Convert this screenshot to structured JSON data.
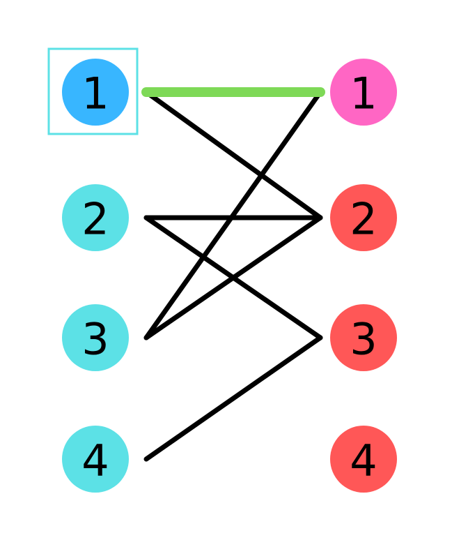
{
  "colors": {
    "background": "#ffffff",
    "left_default": "#5ce1e6",
    "left_active": "#38b6ff",
    "right_active": "#ff66c4",
    "right_default": "#ff5757",
    "edge": "#000000",
    "matched_edge": "#7ed957",
    "selection_box": "#5ce1e6",
    "label": "#000000"
  },
  "left_nodes": [
    {
      "label": "1",
      "state": "active"
    },
    {
      "label": "2",
      "state": "default"
    },
    {
      "label": "3",
      "state": "default"
    },
    {
      "label": "4",
      "state": "default"
    }
  ],
  "right_nodes": [
    {
      "label": "1",
      "state": "active"
    },
    {
      "label": "2",
      "state": "default"
    },
    {
      "label": "3",
      "state": "default"
    },
    {
      "label": "4",
      "state": "default"
    }
  ],
  "edges": [
    {
      "from": "1",
      "to": "1",
      "matched": true
    },
    {
      "from": "1",
      "to": "2",
      "matched": false
    },
    {
      "from": "2",
      "to": "2",
      "matched": false
    },
    {
      "from": "2",
      "to": "3",
      "matched": false
    },
    {
      "from": "3",
      "to": "1",
      "matched": false
    },
    {
      "from": "3",
      "to": "2",
      "matched": false
    },
    {
      "from": "4",
      "to": "3",
      "matched": false
    }
  ],
  "selected_left": "1"
}
